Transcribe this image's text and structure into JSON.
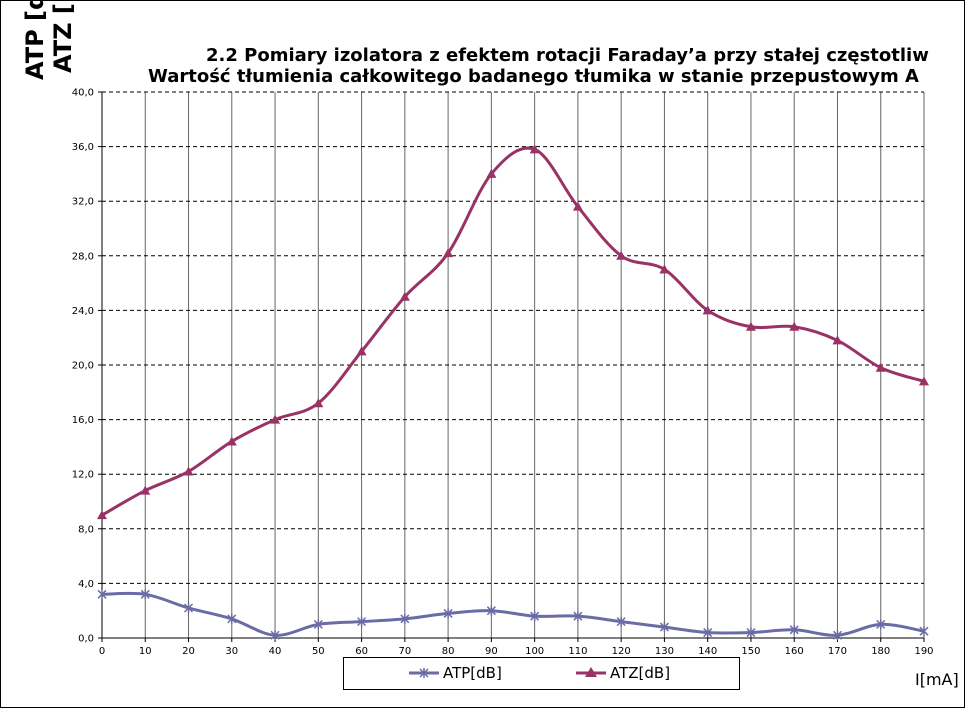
{
  "chart_data": {
    "type": "line",
    "title_line1": "2.2 Pomiary izolatora z efektem rotacji Faraday’a przy stałej częstotliw",
    "title_line2": "Wartość tłumienia całkowitego badanego tłumika w stanie przepustowym A",
    "ylabel_line1": "ATP [d",
    "ylabel_line2": "ATZ [",
    "xlabel": "I[mA]",
    "xlim": [
      0,
      190
    ],
    "ylim": [
      0,
      40
    ],
    "x_ticks": [
      "0",
      "10",
      "20",
      "30",
      "40",
      "50",
      "60",
      "70",
      "80",
      "90",
      "100",
      "110",
      "120",
      "130",
      "140",
      "150",
      "160",
      "170",
      "180",
      "190"
    ],
    "y_ticks": [
      "0,0",
      "4,0",
      "8,0",
      "12,0",
      "16,0",
      "20,0",
      "24,0",
      "28,0",
      "32,0",
      "36,0",
      "40,0"
    ],
    "grid": {
      "horizontal": "dashed",
      "vertical": "solid"
    },
    "legend_position": "bottom",
    "series": [
      {
        "name": "ATP[dB]",
        "color": "#6b6ba6",
        "marker": "star",
        "x": [
          0,
          10,
          20,
          30,
          40,
          50,
          60,
          70,
          80,
          90,
          100,
          110,
          120,
          130,
          140,
          150,
          160,
          170,
          180,
          190
        ],
        "values": [
          3.2,
          3.2,
          2.2,
          1.4,
          0.2,
          1.0,
          1.2,
          1.4,
          1.8,
          2.0,
          1.6,
          1.6,
          1.2,
          0.8,
          0.4,
          0.4,
          0.6,
          0.2,
          1.0,
          0.5
        ]
      },
      {
        "name": "ATZ[dB]",
        "color": "#993366",
        "marker": "triangle",
        "x": [
          0,
          10,
          20,
          30,
          40,
          50,
          60,
          70,
          80,
          90,
          100,
          110,
          120,
          130,
          140,
          150,
          160,
          170,
          180,
          190
        ],
        "values": [
          9.0,
          10.8,
          12.2,
          14.4,
          16.0,
          17.2,
          21.0,
          25.0,
          28.2,
          34.0,
          35.8,
          31.6,
          28.0,
          27.0,
          24.0,
          22.8,
          22.8,
          21.8,
          19.8,
          18.8
        ]
      }
    ]
  }
}
